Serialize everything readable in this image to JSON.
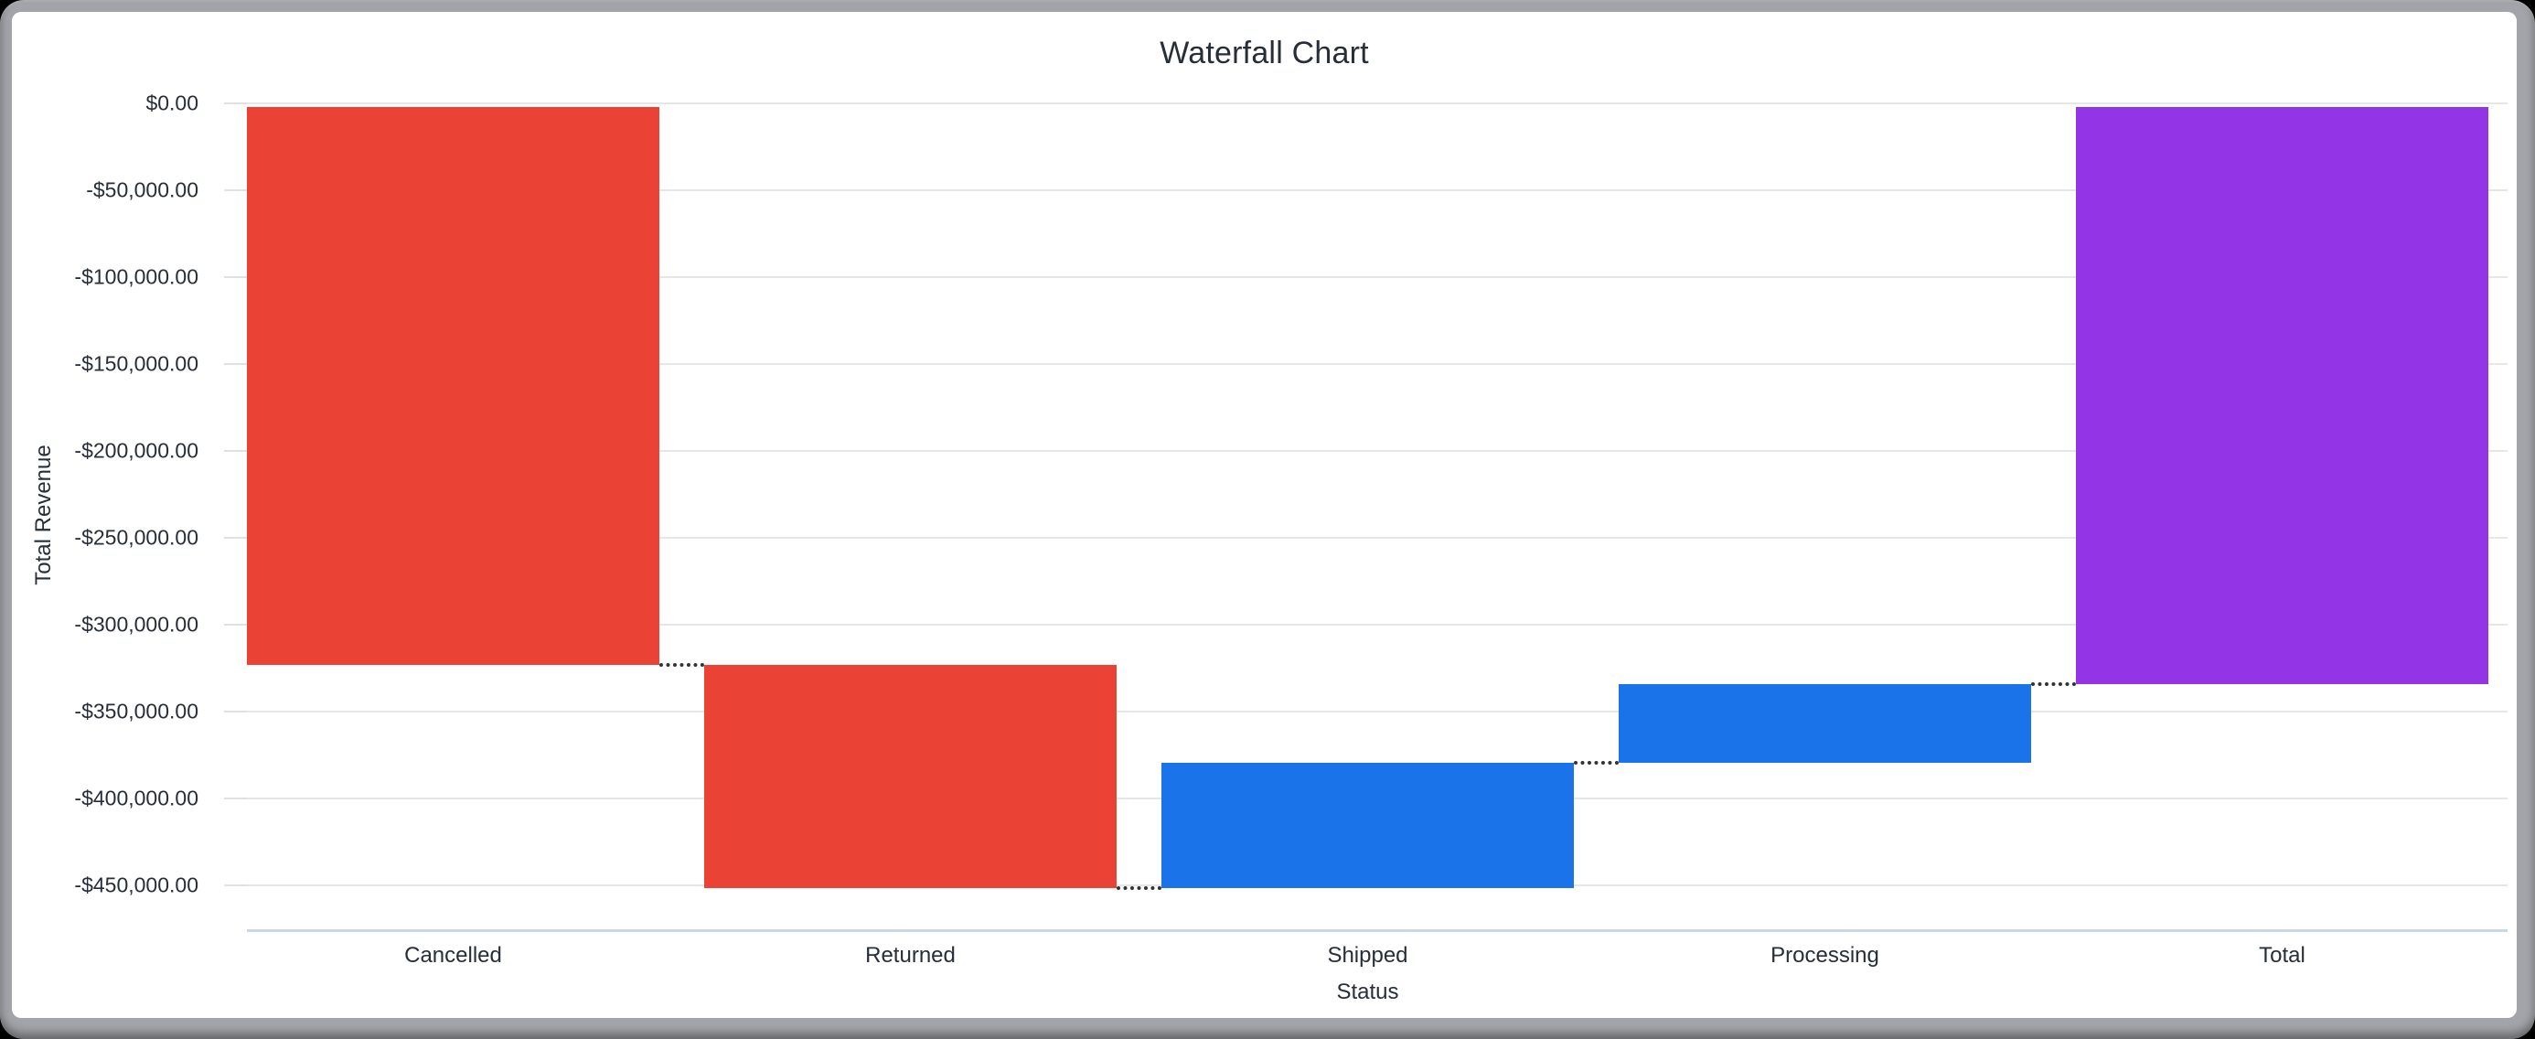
{
  "page": {
    "background": "#000000"
  },
  "window": {
    "frame_color": "#a2a4a9",
    "card_color": "#ffffff"
  },
  "chart_data": {
    "type": "bar",
    "subtype": "waterfall",
    "title": "Waterfall Chart",
    "xlabel": "Status",
    "ylabel": "Total Revenue",
    "categories": [
      "Cancelled",
      "Returned",
      "Shipped",
      "Processing",
      "Total"
    ],
    "ylim": [
      -475000,
      0
    ],
    "grid": true,
    "legend": "none",
    "y_tick_format": "USD, 2 decimals",
    "y_ticks": [
      {
        "value": 0,
        "label": "$0.00"
      },
      {
        "value": -50000,
        "label": "-$50,000.00"
      },
      {
        "value": -100000,
        "label": "-$100,000.00"
      },
      {
        "value": -150000,
        "label": "-$150,000.00"
      },
      {
        "value": -200000,
        "label": "-$200,000.00"
      },
      {
        "value": -250000,
        "label": "-$250,000.00"
      },
      {
        "value": -300000,
        "label": "-$300,000.00"
      },
      {
        "value": -350000,
        "label": "-$350,000.00"
      },
      {
        "value": -400000,
        "label": "-$400,000.00"
      },
      {
        "value": -450000,
        "label": "-$450,000.00"
      }
    ],
    "bars": [
      {
        "category": "Cancelled",
        "delta": -323000,
        "start": 0,
        "end": -323000,
        "role": "decrease",
        "color": "#ea4335"
      },
      {
        "category": "Returned",
        "delta": -128500,
        "start": -323000,
        "end": -451500,
        "role": "decrease",
        "color": "#ea4335"
      },
      {
        "category": "Shipped",
        "delta": 72000,
        "start": -451500,
        "end": -379500,
        "role": "increase",
        "color": "#1a73e8"
      },
      {
        "category": "Processing",
        "delta": 45500,
        "start": -379500,
        "end": -334000,
        "role": "increase",
        "color": "#1a73e8"
      },
      {
        "category": "Total",
        "delta": -334000,
        "start": 0,
        "end": -334000,
        "role": "total",
        "color": "#9334e6"
      }
    ],
    "connectors": {
      "style": "dotted",
      "color": "#333333"
    },
    "colors": {
      "decrease": "#ea4335",
      "increase": "#1a73e8",
      "total": "#9334e6",
      "gridline": "#e6e6e6",
      "axis_line": "#ccd6eb",
      "tick": "#e0e0e0",
      "text": "#272e38"
    }
  }
}
